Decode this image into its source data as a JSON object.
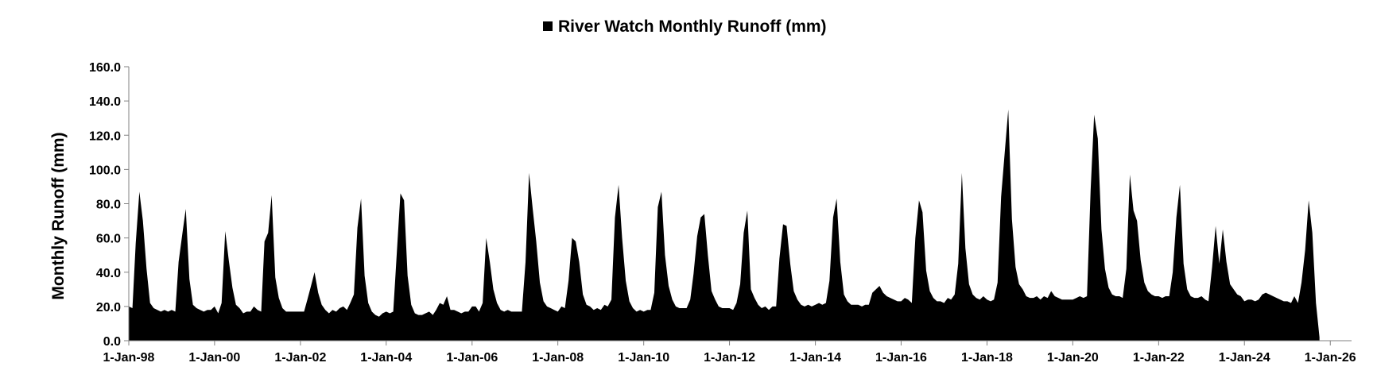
{
  "chart_data": {
    "type": "area",
    "title": "River Watch Monthly Runoff (mm)",
    "legend": {
      "position": "top",
      "entries": [
        "River Watch Monthly Runoff (mm)"
      ]
    },
    "xlabel": "",
    "ylabel": "Monthly Runoff (mm)",
    "ylim": [
      0,
      160
    ],
    "yticks": [
      "0.0",
      "20.0",
      "40.0",
      "60.0",
      "80.0",
      "100.0",
      "120.0",
      "140.0",
      "160.0"
    ],
    "xlim": [
      "1998-01-01",
      "2026-07-01"
    ],
    "xticks": [
      "1-Jan-98",
      "1-Jan-00",
      "1-Jan-02",
      "1-Jan-04",
      "1-Jan-06",
      "1-Jan-08",
      "1-Jan-10",
      "1-Jan-12",
      "1-Jan-14",
      "1-Jan-16",
      "1-Jan-18",
      "1-Jan-20",
      "1-Jan-22",
      "1-Jan-24",
      "1-Jan-26"
    ],
    "grid": false,
    "color": "#000000",
    "series": [
      {
        "name": "River Watch Monthly Runoff (mm)",
        "x_start": "1998-01",
        "frequency": "monthly",
        "values": [
          20,
          19,
          57,
          87,
          70,
          42,
          22,
          19,
          18,
          17,
          18,
          17,
          18,
          17,
          46,
          62,
          77,
          36,
          21,
          19,
          18,
          17,
          18,
          18,
          20,
          16,
          22,
          64,
          47,
          31,
          21,
          19,
          16,
          17,
          17,
          20,
          18,
          17,
          58,
          63,
          85,
          37,
          25,
          19,
          17,
          17,
          17,
          17,
          17,
          17,
          24,
          32,
          40,
          28,
          21,
          18,
          16,
          18,
          17,
          19,
          20,
          18,
          22,
          27,
          66,
          83,
          38,
          22,
          17,
          15,
          14,
          16,
          17,
          16,
          17,
          52,
          86,
          82,
          38,
          21,
          16,
          15,
          15,
          16,
          17,
          15,
          18,
          22,
          21,
          26,
          18,
          18,
          17,
          16,
          17,
          17,
          20,
          20,
          17,
          22,
          60,
          46,
          30,
          22,
          18,
          17,
          18,
          17,
          17,
          17,
          17,
          46,
          98,
          77,
          58,
          34,
          23,
          20,
          19,
          18,
          17,
          20,
          19,
          35,
          60,
          58,
          46,
          27,
          21,
          20,
          18,
          19,
          18,
          21,
          20,
          24,
          72,
          91,
          60,
          35,
          23,
          19,
          17,
          18,
          17,
          18,
          18,
          28,
          78,
          87,
          50,
          32,
          24,
          20,
          19,
          19,
          19,
          24,
          39,
          61,
          72,
          74,
          50,
          29,
          24,
          20,
          19,
          19,
          19,
          18,
          22,
          33,
          63,
          76,
          30,
          25,
          21,
          19,
          20,
          18,
          20,
          20,
          48,
          68,
          67,
          45,
          29,
          24,
          21,
          20,
          21,
          20,
          21,
          22,
          21,
          22,
          35,
          72,
          83,
          46,
          27,
          23,
          21,
          21,
          21,
          20,
          21,
          21,
          28,
          30,
          32,
          28,
          26,
          25,
          24,
          23,
          23,
          25,
          24,
          22,
          60,
          82,
          75,
          41,
          29,
          25,
          23,
          23,
          22,
          25,
          24,
          27,
          45,
          98,
          54,
          33,
          27,
          25,
          24,
          26,
          24,
          23,
          24,
          34,
          84,
          110,
          135,
          71,
          43,
          33,
          30,
          26,
          25,
          25,
          26,
          24,
          26,
          25,
          29,
          26,
          25,
          24,
          24,
          24,
          24,
          25,
          26,
          25,
          26,
          88,
          132,
          118,
          65,
          42,
          31,
          27,
          26,
          26,
          25,
          42,
          97,
          76,
          70,
          47,
          34,
          29,
          27,
          26,
          26,
          25,
          26,
          26,
          40,
          72,
          91,
          45,
          30,
          26,
          25,
          25,
          26,
          24,
          23,
          43,
          67,
          45,
          65,
          46,
          33,
          30,
          27,
          26,
          23,
          24,
          24,
          23,
          24,
          27,
          28,
          27,
          26,
          25,
          24,
          23,
          23,
          22,
          26,
          22,
          34,
          53,
          82,
          63,
          22,
          2
        ]
      }
    ]
  }
}
